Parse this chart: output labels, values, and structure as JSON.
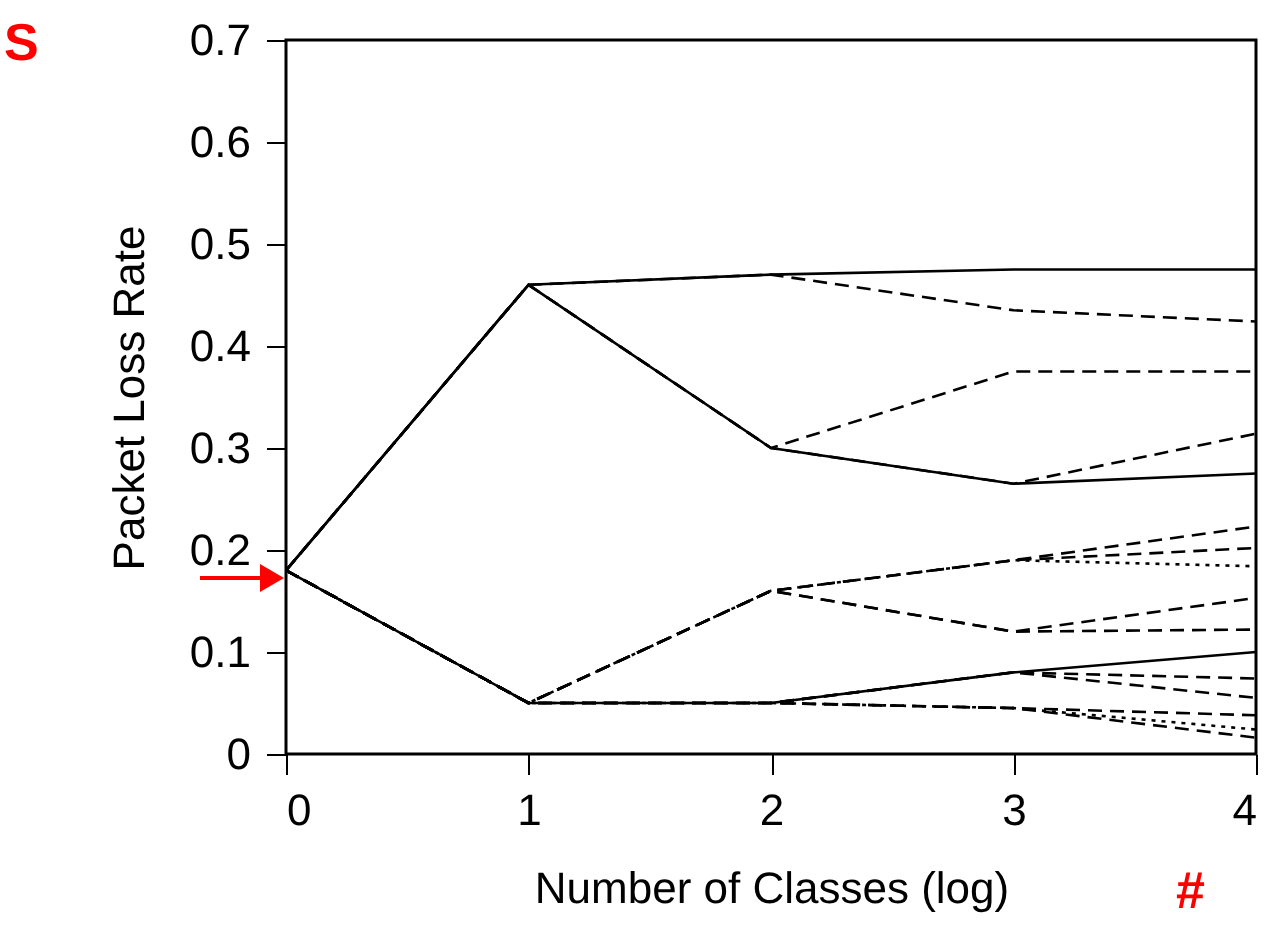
{
  "chart_data": {
    "type": "line",
    "xlabel": "Number of Classes (log)",
    "ylabel": "Packet Loss Rate",
    "x": [
      0,
      1,
      2,
      3,
      4
    ],
    "xlim": [
      0,
      4
    ],
    "xticks": [
      0,
      1,
      2,
      3,
      4
    ],
    "ylim": [
      0,
      0.7
    ],
    "yticks": [
      0,
      0.1,
      0.2,
      0.3,
      0.4,
      0.5,
      0.6,
      0.7
    ],
    "grid": false,
    "annotations": [
      "S",
      "#"
    ],
    "series": [
      {
        "color": "#000000",
        "line_style": "solid",
        "values": [
          0.18,
          0.46,
          0.47,
          0.475,
          0.475
        ]
      },
      {
        "color": "#000000",
        "line_style": "dashed",
        "values": [
          0.18,
          0.46,
          0.47,
          0.435,
          0.424
        ]
      },
      {
        "color": "#000000",
        "line_style": "dashed",
        "values": [
          0.18,
          0.46,
          0.3,
          0.375,
          0.375
        ]
      },
      {
        "color": "#000000",
        "line_style": "dashed",
        "values": [
          0.18,
          0.46,
          0.3,
          0.265,
          0.314
        ]
      },
      {
        "color": "#000000",
        "line_style": "solid",
        "values": [
          0.18,
          0.46,
          0.3,
          0.265,
          0.275
        ]
      },
      {
        "color": "#000000",
        "line_style": "dashed",
        "values": [
          0.18,
          0.05,
          0.16,
          0.19,
          0.223
        ]
      },
      {
        "color": "#000000",
        "line_style": "dashed",
        "values": [
          0.18,
          0.05,
          0.16,
          0.19,
          0.202
        ]
      },
      {
        "color": "#000000",
        "line_style": "dotted",
        "values": [
          0.18,
          0.05,
          0.16,
          0.19,
          0.184
        ]
      },
      {
        "color": "#000000",
        "line_style": "dashed",
        "values": [
          0.18,
          0.05,
          0.16,
          0.12,
          0.153
        ]
      },
      {
        "color": "#000000",
        "line_style": "dashed",
        "values": [
          0.18,
          0.05,
          0.16,
          0.12,
          0.122
        ]
      },
      {
        "color": "#000000",
        "line_style": "solid",
        "values": [
          0.18,
          0.05,
          0.05,
          0.08,
          0.1
        ]
      },
      {
        "color": "#000000",
        "line_style": "dashed",
        "values": [
          0.18,
          0.05,
          0.05,
          0.08,
          0.074
        ]
      },
      {
        "color": "#000000",
        "line_style": "dashed",
        "values": [
          0.18,
          0.05,
          0.05,
          0.08,
          0.055
        ]
      },
      {
        "color": "#000000",
        "line_style": "dashed",
        "values": [
          0.18,
          0.05,
          0.05,
          0.045,
          0.038
        ]
      },
      {
        "color": "#000000",
        "line_style": "dotted",
        "values": [
          0.18,
          0.05,
          0.05,
          0.045,
          0.024
        ]
      },
      {
        "color": "#000000",
        "line_style": "dashed",
        "values": [
          0.18,
          0.05,
          0.05,
          0.045,
          0.016
        ]
      }
    ]
  }
}
